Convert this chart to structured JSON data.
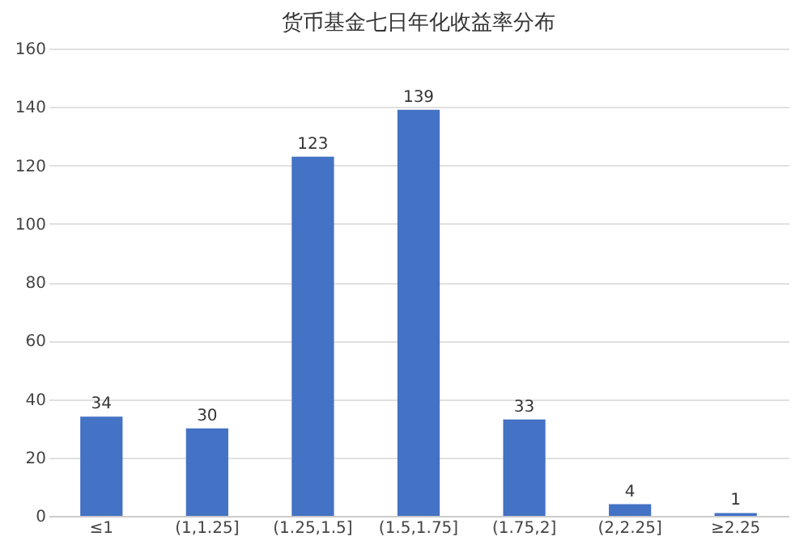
{
  "chart_data": {
    "type": "bar",
    "title": "货币基金七日年化收益率分布",
    "categories": [
      "≤1",
      "(1,1.25]",
      "(1.25,1.5]",
      "(1.5,1.75]",
      "(1.75,2]",
      "(2,2.25]",
      "≥2.25"
    ],
    "values": [
      34,
      30,
      123,
      139,
      33,
      4,
      1
    ],
    "color": "#4472c4",
    "ylim": [
      0,
      160
    ],
    "yticks": [
      0,
      20,
      40,
      60,
      80,
      100,
      120,
      140,
      160
    ],
    "grid": "y",
    "data_labels": true
  }
}
